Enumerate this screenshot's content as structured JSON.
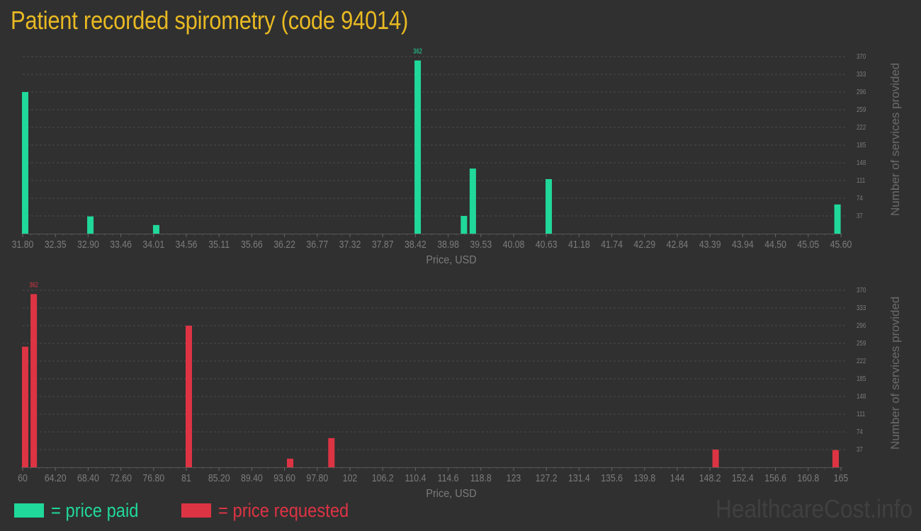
{
  "title": "Patient recorded spirometry (code 94014)",
  "colors": {
    "background": "#303030",
    "title": "#e8b923",
    "paid": "#20d89a",
    "requested": "#dd3444",
    "axis_text": "#7c7c7c",
    "grid": "#4a4a4a",
    "watermark": "#404040"
  },
  "legend": {
    "paid_label": "= price paid",
    "requested_label": "= price requested"
  },
  "watermark": "HealthcareCost.info",
  "chart_data": [
    {
      "type": "bar",
      "title": "Price paid",
      "xlabel": "Price, USD",
      "ylabel": "Number of services provided",
      "x_tick_labels": [
        "31.80",
        "32.35",
        "32.90",
        "33.46",
        "34.01",
        "34.56",
        "35.11",
        "35.66",
        "36.22",
        "36.77",
        "37.32",
        "37.87",
        "38.42",
        "38.98",
        "39.53",
        "40.08",
        "40.63",
        "41.18",
        "41.74",
        "42.29",
        "42.84",
        "43.39",
        "43.94",
        "44.50",
        "45.05",
        "45.60"
      ],
      "y_ticks": [
        37,
        74,
        111,
        148,
        185,
        222,
        259,
        296,
        333,
        370
      ],
      "ylim": [
        0,
        370
      ],
      "xlim": [
        31.8,
        45.6
      ],
      "grid": true,
      "color": "#20d89a",
      "max_label": "362",
      "bars": [
        {
          "x": 31.8,
          "value": 296
        },
        {
          "x": 32.9,
          "value": 36
        },
        {
          "x": 34.01,
          "value": 18
        },
        {
          "x": 38.42,
          "value": 362
        },
        {
          "x": 39.2,
          "value": 37
        },
        {
          "x": 39.35,
          "value": 136
        },
        {
          "x": 40.63,
          "value": 114
        },
        {
          "x": 45.5,
          "value": 61
        }
      ]
    },
    {
      "type": "bar",
      "title": "Price requested",
      "xlabel": "Price, USD",
      "ylabel": "Number of services provided",
      "x_tick_labels": [
        "60",
        "64.20",
        "68.40",
        "72.60",
        "76.80",
        "81",
        "85.20",
        "89.40",
        "93.60",
        "97.80",
        "102",
        "106.2",
        "110.4",
        "114.6",
        "118.8",
        "123",
        "127.2",
        "131.4",
        "135.6",
        "139.8",
        "144",
        "148.2",
        "152.4",
        "156.6",
        "160.8",
        "165"
      ],
      "y_ticks": [
        37,
        74,
        111,
        148,
        185,
        222,
        259,
        296,
        333,
        370
      ],
      "ylim": [
        0,
        370
      ],
      "xlim": [
        60,
        165
      ],
      "grid": true,
      "color": "#dd3444",
      "max_label": "362",
      "bars": [
        {
          "x": 60.0,
          "value": 252
        },
        {
          "x": 61.1,
          "value": 362
        },
        {
          "x": 81.0,
          "value": 296
        },
        {
          "x": 94.0,
          "value": 18
        },
        {
          "x": 99.3,
          "value": 61
        },
        {
          "x": 148.6,
          "value": 37
        },
        {
          "x": 164.0,
          "value": 36
        }
      ]
    }
  ]
}
